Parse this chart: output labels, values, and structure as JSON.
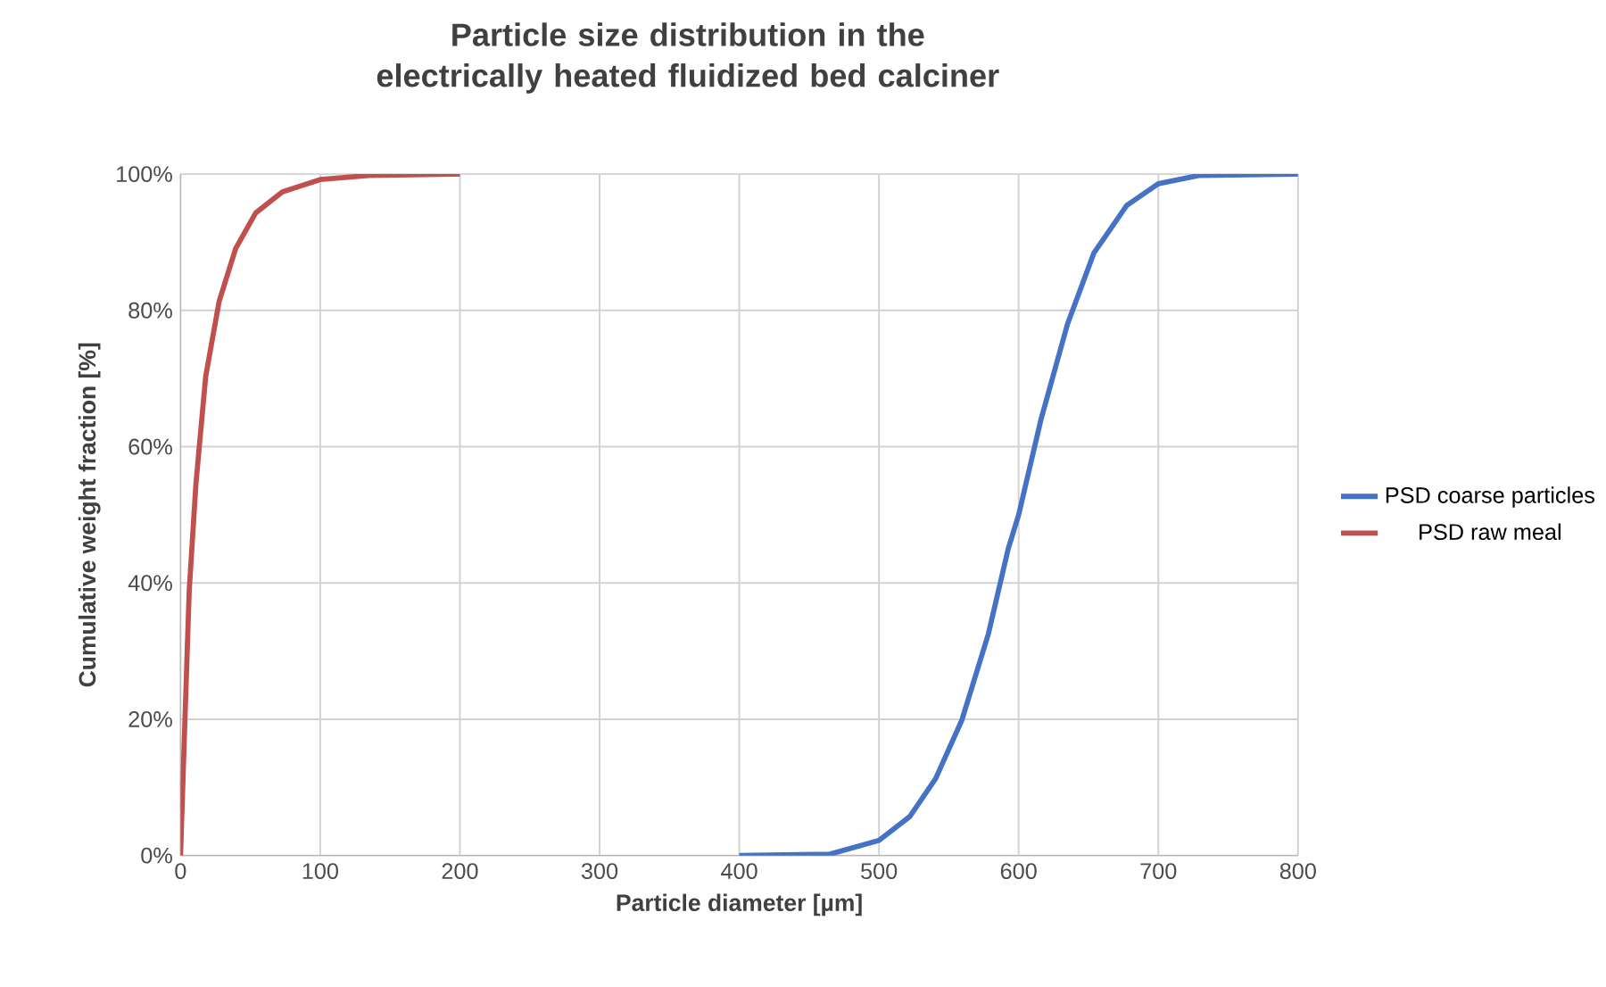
{
  "chart_data": {
    "type": "line",
    "title": "Particle  size distribution in the electrically heated fluidized bed calciner",
    "xlabel": "Particle diameter [µm]",
    "ylabel": "Cumulative weight fraction [%]",
    "series": [
      {
        "name": "PSD coarse particles",
        "color": "#4472c4",
        "x": [
          400,
          465,
          500,
          522,
          540.6,
          559.4,
          578.3,
          592.5,
          600,
          616,
          635,
          653.8,
          677.4,
          700,
          729,
          800
        ],
        "values": [
          0,
          0.2,
          2.2,
          5.7,
          11.3,
          19.9,
          32.5,
          45,
          50,
          64,
          78,
          88.4,
          95.4,
          98.6,
          99.8,
          100
        ]
      },
      {
        "name": "PSD raw meal",
        "color": "#c0504d",
        "x": [
          0,
          2.4,
          6.2,
          11,
          18,
          27.6,
          39.5,
          53.8,
          72.9,
          100,
          134.8,
          200
        ],
        "values": [
          0,
          15.2,
          38.8,
          54.5,
          70.3,
          81.3,
          89.1,
          94.3,
          97.4,
          99.2,
          99.8,
          100
        ]
      }
    ],
    "xlim": [
      0,
      800
    ],
    "ylim": [
      0,
      100
    ],
    "xticks": [
      0,
      100,
      200,
      300,
      400,
      500,
      600,
      700,
      800
    ],
    "yticks": [
      {
        "value": 0,
        "label": "0%"
      },
      {
        "value": 20,
        "label": "20%"
      },
      {
        "value": 40,
        "label": "40%"
      },
      {
        "value": 60,
        "label": "60%"
      },
      {
        "value": 80,
        "label": "80%"
      },
      {
        "value": 100,
        "label": "100%"
      }
    ],
    "grid": true,
    "legend": "right",
    "marker": "none",
    "line_style": "solid"
  }
}
